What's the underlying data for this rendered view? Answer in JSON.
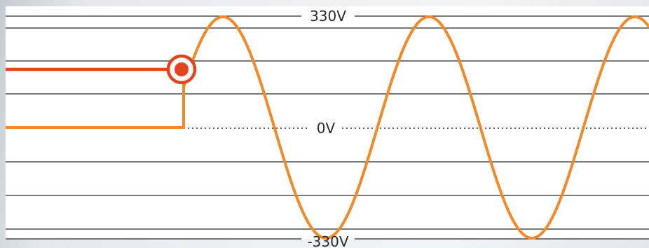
{
  "labels": {
    "top": "330V",
    "mid": "0V",
    "bottom": "-330V"
  },
  "colors": {
    "wave": "#f08a2a",
    "switch_line": "#e2441f",
    "grid": "#2a2a2a",
    "background": "#ffffff"
  }
}
